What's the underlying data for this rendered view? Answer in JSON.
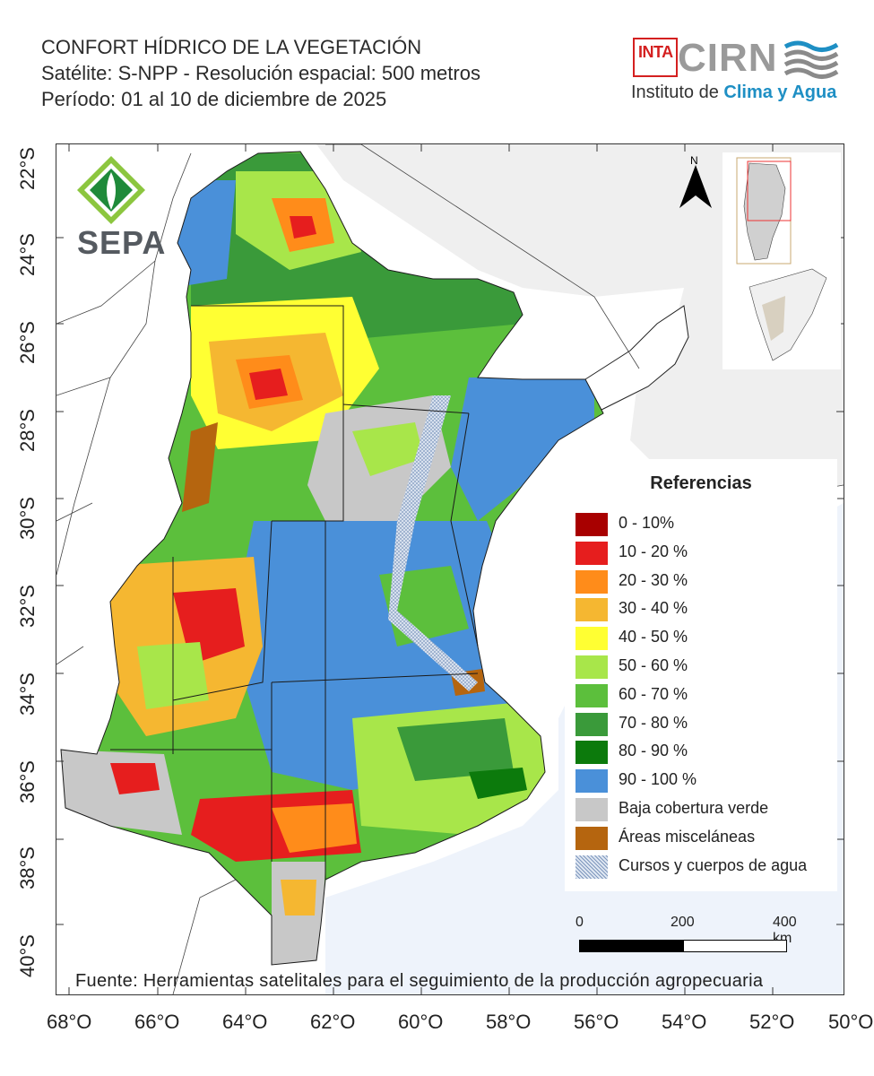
{
  "header": {
    "line1": "CONFORT HÍDRICO DE LA VEGETACIÓN",
    "line2": "Satélite: S-NPP - Resolución espacial: 500 metros",
    "line3": "Período: 01 al 10 de diciembre de 2025"
  },
  "logos": {
    "inta": "INTA",
    "cirn": "CIRN",
    "institute_prefix": "Instituto de ",
    "institute_highlight": "Clima y Agua",
    "sepa": "SEPA"
  },
  "axes": {
    "lat_labels": [
      "22°S",
      "24°S",
      "26°S",
      "28°S",
      "30°S",
      "32°S",
      "34°S",
      "36°S",
      "38°S",
      "40°S"
    ],
    "lon_labels": [
      "68°O",
      "66°O",
      "64°O",
      "62°O",
      "60°O",
      "58°O",
      "56°O",
      "54°O",
      "52°O",
      "50°O"
    ]
  },
  "north_arrow": {
    "label": "N"
  },
  "legend": {
    "title": "Referencias",
    "items": [
      {
        "label": "0 - 10%",
        "color": "#a80000"
      },
      {
        "label": "10 - 20 %",
        "color": "#e61e1e"
      },
      {
        "label": "20 - 30 %",
        "color": "#ff8c1a"
      },
      {
        "label": "30 - 40 %",
        "color": "#f5b731"
      },
      {
        "label": "40 - 50 %",
        "color": "#ffff33"
      },
      {
        "label": "50 - 60 %",
        "color": "#a8e64a"
      },
      {
        "label": "60 - 70 %",
        "color": "#5cbf3c"
      },
      {
        "label": "70 - 80 %",
        "color": "#3a9a3a"
      },
      {
        "label": "80 - 90 %",
        "color": "#0c7a0c"
      },
      {
        "label": "90 - 100 %",
        "color": "#4a90d9"
      },
      {
        "label": "Baja cobertura verde",
        "color": "#c8c8c8"
      },
      {
        "label": "Áreas misceláneas",
        "color": "#b5650f"
      },
      {
        "label": "Cursos y cuerpos de agua",
        "color": "#9fb4cf"
      }
    ]
  },
  "scale": {
    "labels": [
      "0",
      "200",
      "400 km"
    ]
  },
  "source": "Fuente: Herramientas satelitales para el seguimiento de la producción agropecuaria"
}
